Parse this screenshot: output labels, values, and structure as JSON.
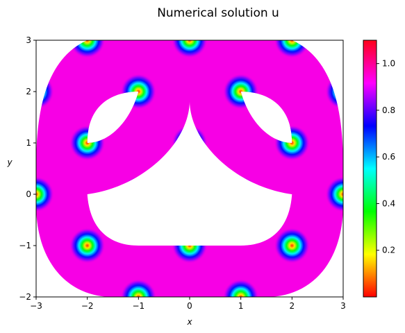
{
  "chart_data": {
    "type": "heatmap",
    "title": "Numerical solution u",
    "xlabel": "x",
    "ylabel": "y",
    "xlim": [
      -3,
      3
    ],
    "ylim": [
      -2,
      3
    ],
    "x_ticks": [
      "−3",
      "−2",
      "−1",
      "0",
      "1",
      "2",
      "3"
    ],
    "y_ticks": [
      "−2",
      "−1",
      "0",
      "1",
      "2",
      "3"
    ],
    "colormap": "hsv",
    "colorbar": {
      "range": [
        0.0,
        1.1
      ],
      "ticks": [
        "0.2",
        "0.4",
        "0.6",
        "0.8",
        "1.0"
      ]
    },
    "field": {
      "background_value": 1.0,
      "spot_min_value": 0.0,
      "spot_centers_x": [
        -3,
        -2,
        -1,
        0,
        1,
        2,
        3
      ],
      "spot_centers_y": [
        -2,
        -1,
        0,
        1,
        2,
        3
      ],
      "spot_rows_offset": true
    },
    "domain": {
      "outer": "rounded rectangle from x=-3 to 3, y=-2 to 3",
      "holes": [
        "left crescent near (-1.5, 1.5)",
        "right crescent near (1.5, 1.5)",
        "central cusp-shaped cutout from y=-1 to 1.8"
      ]
    }
  }
}
